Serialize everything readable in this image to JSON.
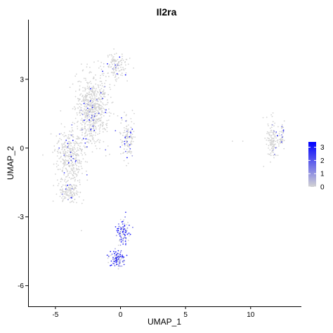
{
  "chart_data": {
    "type": "scatter",
    "title": "Il2ra",
    "xlabel": "UMAP_1",
    "ylabel": "UMAP_2",
    "xlim": [
      -7.1,
      13.9
    ],
    "ylim": [
      -6.9,
      5.6
    ],
    "x_ticks": [
      -5,
      0,
      5,
      10
    ],
    "y_ticks": [
      -6,
      -3,
      0,
      3
    ],
    "grid": false,
    "legend": {
      "placement": "right",
      "type": "color-scale",
      "ticks": [
        0,
        1,
        2,
        3
      ],
      "range": [
        0,
        3.4
      ],
      "low_color": "#d3d3d3",
      "high_color": "#0000ff"
    },
    "clusters": [
      {
        "center": [
          -2.2,
          1.7
        ],
        "spread": [
          1.1,
          1.4
        ],
        "count": 650,
        "expression_rate": 0.05
      },
      {
        "center": [
          -3.9,
          -0.4
        ],
        "spread": [
          1.0,
          1.1
        ],
        "count": 350,
        "expression_rate": 0.05
      },
      {
        "center": [
          -0.3,
          3.6
        ],
        "spread": [
          0.8,
          0.5
        ],
        "count": 130,
        "expression_rate": 0.05
      },
      {
        "center": [
          0.5,
          0.4
        ],
        "spread": [
          0.5,
          1.0
        ],
        "count": 120,
        "expression_rate": 0.15
      },
      {
        "center": [
          -3.9,
          -1.9
        ],
        "spread": [
          0.7,
          0.5
        ],
        "count": 120,
        "expression_rate": 0.05
      },
      {
        "center": [
          11.7,
          0.4
        ],
        "spread": [
          0.4,
          0.8
        ],
        "count": 120,
        "expression_rate": 0.05
      },
      {
        "center": [
          12.4,
          0.5
        ],
        "spread": [
          0.25,
          0.5
        ],
        "count": 50,
        "expression_rate": 0.08
      },
      {
        "center": [
          0.2,
          -3.7
        ],
        "spread": [
          0.35,
          0.55
        ],
        "count": 90,
        "expression_rate": 0.75
      },
      {
        "center": [
          -0.2,
          -4.8
        ],
        "spread": [
          0.5,
          0.3
        ],
        "count": 110,
        "expression_rate": 0.75
      }
    ],
    "outliers": [
      [
        -3.0,
        -3.6
      ],
      [
        9.4,
        0.3
      ],
      [
        8.6,
        0.3
      ],
      [
        11.0,
        -0.8
      ]
    ]
  }
}
